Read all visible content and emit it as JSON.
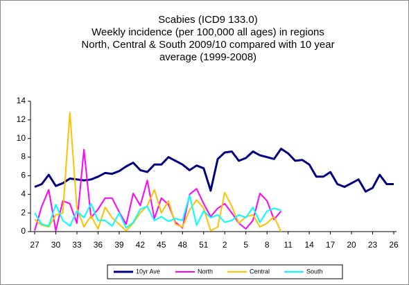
{
  "chart_data": {
    "type": "line",
    "title": [
      "Scabies (ICD9 133.0)",
      "Weekly incidence (per 100,000 all ages) in regions",
      "North, Central & South 2009/10 compared with 10 year",
      "average (1999-2008)"
    ],
    "categories": [
      "27",
      null,
      null,
      "30",
      null,
      null,
      "33",
      null,
      null,
      "36",
      null,
      null,
      "39",
      null,
      null,
      "42",
      null,
      null,
      "45",
      null,
      null,
      "48",
      null,
      null,
      "51",
      null,
      null,
      "2",
      null,
      null,
      "5",
      null,
      null,
      "8",
      null,
      null,
      "11",
      null,
      null,
      "14",
      null,
      null,
      "17",
      null,
      null,
      "20",
      null,
      null,
      "23",
      null,
      null,
      "26"
    ],
    "ylim": [
      0,
      14
    ],
    "yticks": [
      0,
      2,
      4,
      6,
      8,
      10,
      12,
      14
    ],
    "grid": false,
    "legend": "bottom",
    "series": [
      {
        "name": "10yr Ave",
        "color": "#000080",
        "values": [
          4.8,
          5.1,
          6.1,
          4.9,
          5.2,
          5.7,
          5.6,
          5.5,
          5.6,
          5.9,
          6.3,
          6.2,
          6.5,
          7.0,
          7.4,
          6.6,
          6.4,
          7.2,
          7.2,
          8.0,
          7.6,
          7.2,
          6.6,
          7.1,
          6.8,
          4.4,
          7.8,
          8.5,
          8.6,
          7.6,
          7.9,
          8.6,
          8.2,
          8.0,
          7.8,
          8.9,
          8.4,
          7.6,
          7.7,
          7.2,
          5.9,
          5.9,
          6.4,
          5.1,
          4.8,
          5.2,
          5.6,
          4.3,
          4.7,
          6.1,
          5.1,
          5.1
        ]
      },
      {
        "name": "North",
        "color": "#ff00ff",
        "values": [
          0.1,
          2.7,
          4.5,
          0.1,
          3.3,
          3.0,
          0.9,
          8.8,
          1.5,
          2.4,
          3.6,
          3.6,
          2.1,
          0.8,
          4.1,
          2.8,
          5.5,
          1.4,
          3.6,
          2.9,
          1.0,
          0.4,
          4.0,
          4.6,
          3.0,
          1.6,
          2.5,
          3.0,
          2.0,
          0.9,
          0.3,
          1.2,
          4.1,
          3.3,
          1.3,
          2.2,
          null,
          null,
          null,
          null,
          null,
          null,
          null,
          null,
          null,
          null,
          null,
          null,
          null,
          null,
          null,
          null
        ]
      },
      {
        "name": "Central",
        "color": "#ffc000",
        "values": [
          1.3,
          0.7,
          0.5,
          1.8,
          2.0,
          12.8,
          2.5,
          0.5,
          1.7,
          0.3,
          2.6,
          1.5,
          0.8,
          0.1,
          0.9,
          2.0,
          2.8,
          4.5,
          2.0,
          3.3,
          0.8,
          0.5,
          2.3,
          3.4,
          2.5,
          0.1,
          0.5,
          4.2,
          2.7,
          0.9,
          1.6,
          1.8,
          0.5,
          0.9,
          1.6,
          0.0,
          null,
          null,
          null,
          null,
          null,
          null,
          null,
          null,
          null,
          null,
          null,
          null,
          null,
          null,
          null,
          null
        ]
      },
      {
        "name": "South",
        "color": "#00ffff",
        "values": [
          2.0,
          0.8,
          0.6,
          2.9,
          1.2,
          0.6,
          2.2,
          1.5,
          3.0,
          1.2,
          1.2,
          0.6,
          2.0,
          0.4,
          1.0,
          2.4,
          2.7,
          1.2,
          1.6,
          1.1,
          1.4,
          1.2,
          3.9,
          0.7,
          2.2,
          1.5,
          1.8,
          1.0,
          1.2,
          1.8,
          1.5,
          2.6,
          1.0,
          2.2,
          2.5,
          2.3,
          null,
          null,
          null,
          null,
          null,
          null,
          null,
          null,
          null,
          null,
          null,
          null,
          null,
          null,
          null,
          null
        ]
      }
    ]
  }
}
